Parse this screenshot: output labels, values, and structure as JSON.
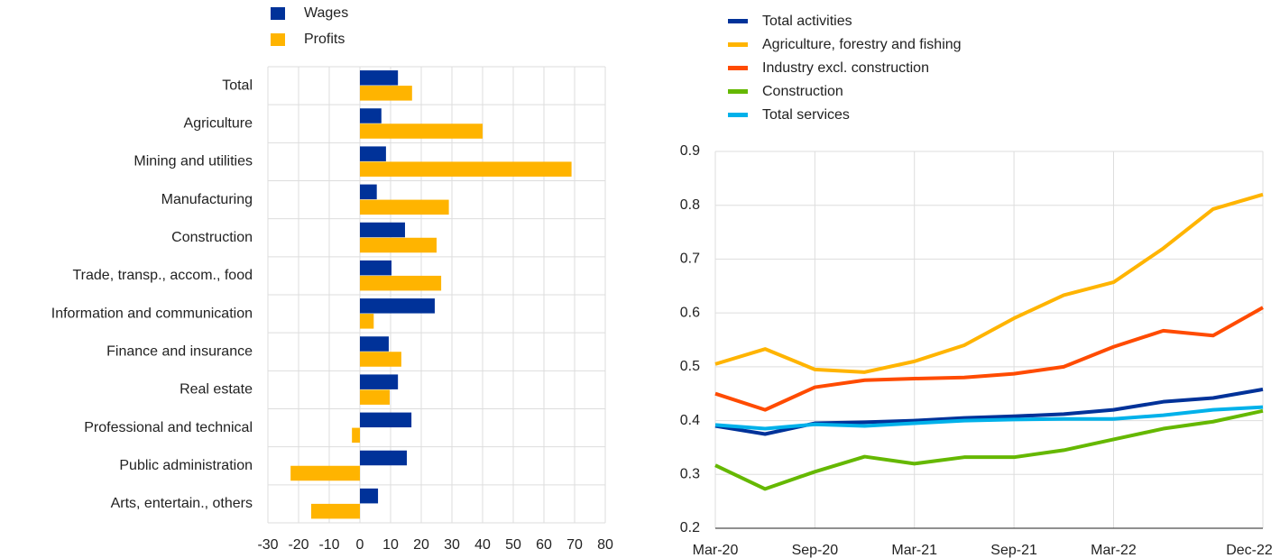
{
  "chart_data": [
    {
      "type": "hbar",
      "categories": [
        "Total",
        "Agriculture",
        "Mining and utilities",
        "Manufacturing",
        "Construction",
        "Trade, transp., accom., food",
        "Information and communication",
        "Finance and insurance",
        "Real estate",
        "Professional and technical",
        "Public administration",
        "Arts, entertain., others"
      ],
      "series": [
        {
          "name": "Wages",
          "color": "#003299",
          "values": [
            12.4,
            7,
            8.5,
            5.5,
            14.7,
            10.3,
            24.4,
            9.4,
            12.4,
            16.8,
            15.3,
            5.9
          ]
        },
        {
          "name": "Profits",
          "color": "#ffb400",
          "values": [
            17,
            40,
            69,
            29,
            25,
            26.5,
            4.5,
            13.5,
            9.7,
            -2.6,
            -22.6,
            -15.9
          ]
        }
      ],
      "xlim": [
        -30,
        80
      ],
      "xticks": [
        -30,
        -20,
        -10,
        0,
        10,
        20,
        30,
        40,
        50,
        60,
        70,
        80
      ],
      "grid": true
    },
    {
      "type": "line",
      "categories": [
        "Mar-20",
        null,
        "Sep-20",
        null,
        "Mar-21",
        null,
        "Sep-21",
        null,
        "Mar-22",
        null,
        null,
        "Dec-22"
      ],
      "series": [
        {
          "name": "Total activities",
          "color": "#003299",
          "values": [
            0.39,
            0.375,
            0.395,
            0.397,
            0.4,
            0.405,
            0.408,
            0.412,
            0.42,
            0.435,
            0.442,
            0.458
          ]
        },
        {
          "name": "Agriculture, forestry and fishing",
          "color": "#ffb400",
          "values": [
            0.505,
            0.533,
            0.495,
            0.49,
            0.51,
            0.54,
            0.59,
            0.633,
            0.657,
            0.72,
            0.793,
            0.82
          ]
        },
        {
          "name": "Industry excl. construction",
          "color": "#ff4b00",
          "values": [
            0.45,
            0.42,
            0.462,
            0.475,
            0.478,
            0.48,
            0.487,
            0.5,
            0.537,
            0.567,
            0.558,
            0.61
          ]
        },
        {
          "name": "Construction",
          "color": "#65b800",
          "values": [
            0.317,
            0.273,
            0.305,
            0.333,
            0.32,
            0.332,
            0.332,
            0.345,
            0.365,
            0.385,
            0.398,
            0.418
          ]
        },
        {
          "name": "Total services",
          "color": "#00b1ea",
          "values": [
            0.392,
            0.385,
            0.393,
            0.39,
            0.395,
            0.4,
            0.402,
            0.403,
            0.403,
            0.41,
            0.42,
            0.425
          ]
        }
      ],
      "ylim": [
        0.2,
        0.9
      ],
      "yticks": [
        0.2,
        0.3,
        0.4,
        0.5,
        0.6,
        0.7,
        0.8,
        0.9
      ],
      "grid": true
    }
  ]
}
